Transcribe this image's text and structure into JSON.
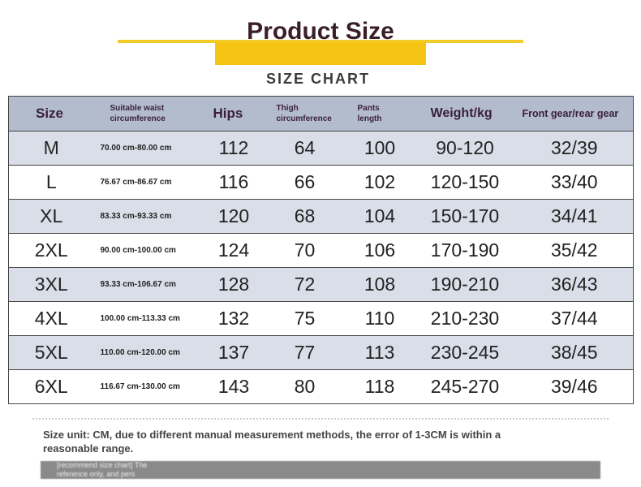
{
  "header": {
    "title": "Product Size",
    "subtitle": "SIZE CHART"
  },
  "table": {
    "columns": [
      "Size",
      "Suitable waist circumference",
      "Hips",
      "Thigh circumference",
      "Pants length",
      "Weight/kg",
      "Front gear/rear gear"
    ],
    "rows": [
      [
        "M",
        "70.00 cm-80.00 cm",
        "112",
        "64",
        "100",
        "90-120",
        "32/39"
      ],
      [
        "L",
        "76.67 cm-86.67 cm",
        "116",
        "66",
        "102",
        "120-150",
        "33/40"
      ],
      [
        "XL",
        "83.33 cm-93.33 cm",
        "120",
        "68",
        "104",
        "150-170",
        "34/41"
      ],
      [
        "2XL",
        "90.00 cm-100.00 cm",
        "124",
        "70",
        "106",
        "170-190",
        "35/42"
      ],
      [
        "3XL",
        "93.33 cm-106.67 cm",
        "128",
        "72",
        "108",
        "190-210",
        "36/43"
      ],
      [
        "4XL",
        "100.00 cm-113.33 cm",
        "132",
        "75",
        "110",
        "210-230",
        "37/44"
      ],
      [
        "5XL",
        "110.00 cm-120.00 cm",
        "137",
        "77",
        "113",
        "230-245",
        "38/45"
      ],
      [
        "6XL",
        "116.67 cm-130.00 cm",
        "143",
        "80",
        "118",
        "245-270",
        "39/46"
      ]
    ]
  },
  "note": {
    "text": "Size unit: CM, due to different manual measurement methods, the error of 1-3CM is within a reasonable range."
  },
  "footer": {
    "fragments": [
      "[recommend size chart] The",
      "reference only, and pers"
    ]
  }
}
